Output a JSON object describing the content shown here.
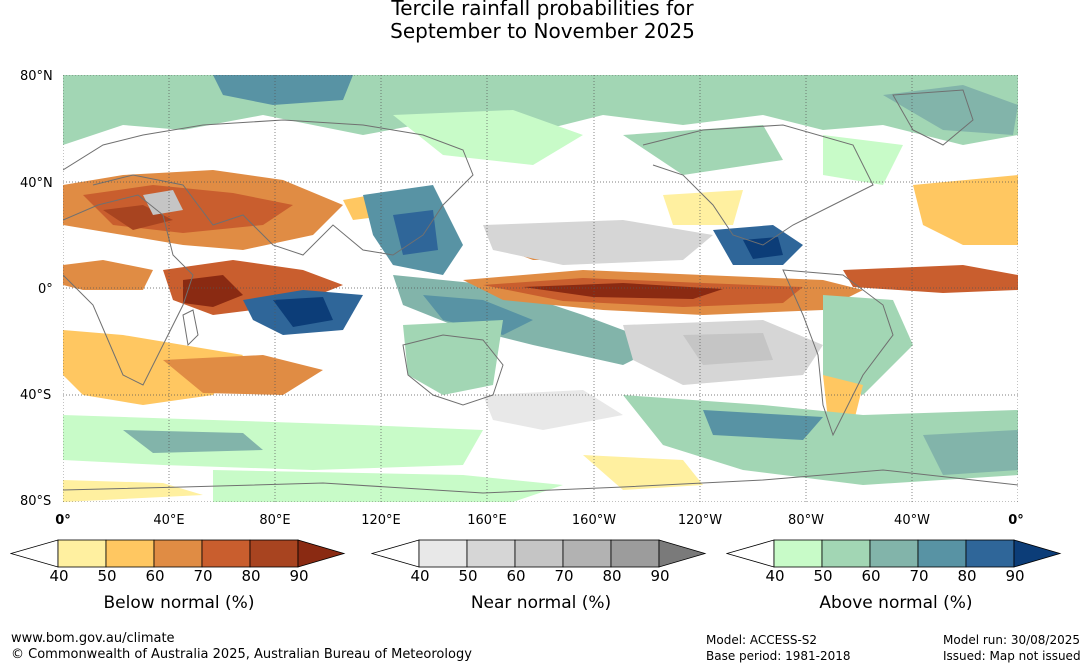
{
  "title": {
    "line1": "Tercile rainfall probabilities for",
    "line2": "September to November 2025"
  },
  "lat_labels": [
    "80°N",
    "40°N",
    "0°",
    "40°S",
    "80°S"
  ],
  "lon_labels": [
    "0°",
    "40°E",
    "80°E",
    "120°E",
    "160°E",
    "160°W",
    "120°W",
    "80°W",
    "40°W",
    "0°"
  ],
  "legends": [
    {
      "title": "Below normal (%)",
      "ticks": [
        "40",
        "50",
        "60",
        "70",
        "80",
        "90"
      ],
      "colors": [
        "#ffffff",
        "#fff0a0",
        "#ffc761",
        "#e08c44",
        "#c95e2e",
        "#a84420",
        "#8a2a12"
      ]
    },
    {
      "title": "Near normal (%)",
      "ticks": [
        "40",
        "50",
        "60",
        "70",
        "80",
        "90"
      ],
      "colors": [
        "#ffffff",
        "#e8e8e8",
        "#d6d6d6",
        "#c5c5c5",
        "#b2b2b2",
        "#9c9c9c",
        "#7a7a7a"
      ]
    },
    {
      "title": "Above normal (%)",
      "ticks": [
        "40",
        "50",
        "60",
        "70",
        "80",
        "90"
      ],
      "colors": [
        "#ffffff",
        "#c8fbc8",
        "#a2d6b4",
        "#82b4aa",
        "#5893a4",
        "#2f6699",
        "#0c3d78"
      ]
    }
  ],
  "footer": {
    "website": "www.bom.gov.au/climate",
    "copyright": "© Commonwealth of Australia 2025, Australian Bureau of Meteorology",
    "model": "Model: ACCESS-S2",
    "base_period": "Base period: 1981-2018",
    "model_run": "Model run: 30/08/2025",
    "issued": "Issued: Map not issued"
  }
}
